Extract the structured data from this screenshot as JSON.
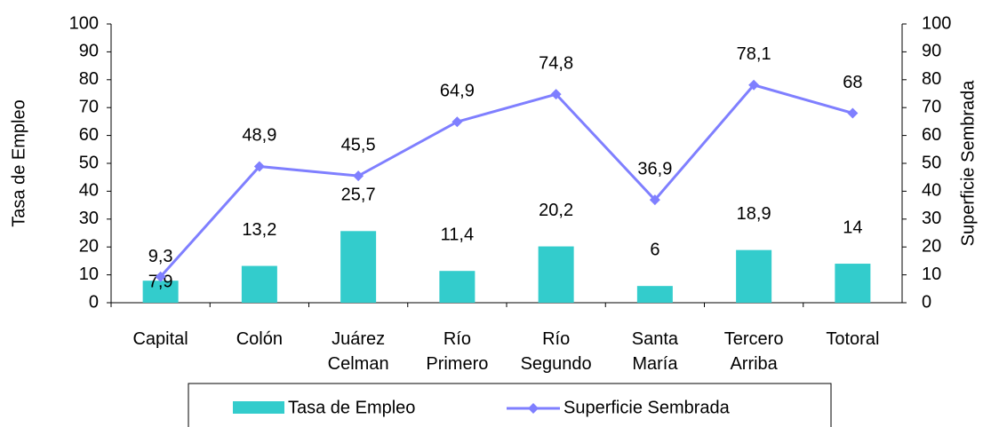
{
  "chart_data": {
    "type": "bar_line",
    "categories": [
      "Capital",
      "Colón",
      "Juárez Celman",
      "Río Primero",
      "Río Segundo",
      "Santa María",
      "Tercero Arriba",
      "Totoral"
    ],
    "series": [
      {
        "name": "Tasa de Empleo",
        "type": "bar",
        "color": "#33cccc",
        "values": [
          7.9,
          13.2,
          25.7,
          11.4,
          20.2,
          6,
          18.9,
          14
        ],
        "value_labels": [
          "7,9",
          "13,2",
          "25,7",
          "11,4",
          "20,2",
          "6",
          "18,9",
          "14"
        ]
      },
      {
        "name": "Superficie Sembrada",
        "type": "line",
        "axis": "y2",
        "color": "#7f7fff",
        "values": [
          9.3,
          48.9,
          45.5,
          64.9,
          74.8,
          36.9,
          78.1,
          68
        ],
        "value_labels": [
          "9,3",
          "48,9",
          "45,5",
          "64,9",
          "74,8",
          "36,9",
          "78,1",
          "68"
        ]
      }
    ],
    "ylabel": "Tasa de Empleo",
    "y2label": "Superficie Sembrada",
    "ylim": [
      0,
      100
    ],
    "yticks": [
      0,
      10,
      20,
      30,
      40,
      50,
      60,
      70,
      80,
      90,
      100
    ],
    "y2lim": [
      0,
      100
    ],
    "y2ticks": [
      0,
      10,
      20,
      30,
      40,
      50,
      60,
      70,
      80,
      90,
      100
    ]
  }
}
